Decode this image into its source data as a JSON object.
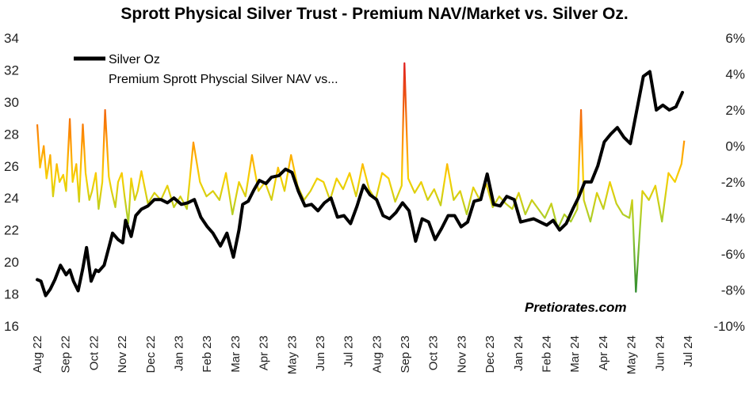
{
  "chart_data": {
    "type": "line",
    "title": "Sprott Physical Silver Trust - Premium NAV/Market vs. Silver Oz.",
    "watermark": "Pretiorates.com",
    "y_left": {
      "ylim": [
        16,
        34
      ],
      "ticks": [
        "16",
        "18",
        "20",
        "22",
        "24",
        "26",
        "28",
        "30",
        "32",
        "34"
      ]
    },
    "y_right": {
      "ylim": [
        -10,
        6
      ],
      "ticks": [
        "-10%",
        "-8%",
        "-6%",
        "-4%",
        "-2%",
        "0%",
        "2%",
        "4%",
        "6%"
      ]
    },
    "x_ticks": [
      "Aug 22",
      "Sep 22",
      "Oct 22",
      "Nov 22",
      "Dec 22",
      "Jan 23",
      "Feb 23",
      "Mar 23",
      "Apr 23",
      "May 23",
      "Jun 23",
      "Jul 23",
      "Aug 23",
      "Sep 23",
      "Oct 23",
      "Nov 23",
      "Dec 23",
      "Jan 24",
      "Feb 24",
      "Mar 24",
      "Apr 24",
      "May 24",
      "Jun 24",
      "Jul 24"
    ],
    "legend": {
      "placement": "top-left"
    },
    "grid": false,
    "series": [
      {
        "name": "Silver Oz",
        "axis": "left",
        "color": "#000000",
        "x": [
          "2022-08-01",
          "2022-08-05",
          "2022-08-10",
          "2022-08-15",
          "2022-08-20",
          "2022-08-26",
          "2022-09-01",
          "2022-09-05",
          "2022-09-09",
          "2022-09-14",
          "2022-09-19",
          "2022-09-23",
          "2022-09-28",
          "2022-10-03",
          "2022-10-06",
          "2022-10-12",
          "2022-10-17",
          "2022-10-21",
          "2022-10-27",
          "2022-11-01",
          "2022-11-04",
          "2022-11-10",
          "2022-11-15",
          "2022-11-21",
          "2022-11-28",
          "2022-12-05",
          "2022-12-12",
          "2022-12-19",
          "2022-12-26",
          "2023-01-03",
          "2023-01-10",
          "2023-01-17",
          "2023-01-24",
          "2023-01-31",
          "2023-02-06",
          "2023-02-14",
          "2023-02-21",
          "2023-02-28",
          "2023-03-06",
          "2023-03-10",
          "2023-03-16",
          "2023-03-22",
          "2023-03-28",
          "2023-04-04",
          "2023-04-10",
          "2023-04-18",
          "2023-04-25",
          "2023-05-02",
          "2023-05-09",
          "2023-05-16",
          "2023-05-23",
          "2023-05-30",
          "2023-06-06",
          "2023-06-13",
          "2023-06-20",
          "2023-06-27",
          "2023-07-04",
          "2023-07-11",
          "2023-07-18",
          "2023-07-25",
          "2023-08-01",
          "2023-08-08",
          "2023-08-15",
          "2023-08-22",
          "2023-08-29",
          "2023-09-05",
          "2023-09-12",
          "2023-09-19",
          "2023-09-26",
          "2023-10-03",
          "2023-10-10",
          "2023-10-17",
          "2023-10-24",
          "2023-10-31",
          "2023-11-07",
          "2023-11-14",
          "2023-11-21",
          "2023-11-28",
          "2023-12-05",
          "2023-12-12",
          "2023-12-19",
          "2023-12-27",
          "2024-01-03",
          "2024-01-10",
          "2024-01-17",
          "2024-01-24",
          "2024-01-31",
          "2024-02-07",
          "2024-02-14",
          "2024-02-21",
          "2024-02-28",
          "2024-03-05",
          "2024-03-12",
          "2024-03-19",
          "2024-03-26",
          "2024-04-02",
          "2024-04-09",
          "2024-04-16",
          "2024-04-23",
          "2024-04-30",
          "2024-05-07",
          "2024-05-14",
          "2024-05-21",
          "2024-05-28",
          "2024-06-04",
          "2024-06-11",
          "2024-06-18",
          "2024-06-25"
        ],
        "values": [
          18.9,
          18.8,
          17.9,
          18.3,
          18.9,
          19.8,
          19.2,
          19.5,
          18.8,
          18.2,
          19.6,
          20.9,
          18.8,
          19.5,
          19.4,
          19.8,
          20.9,
          21.8,
          21.4,
          21.2,
          22.6,
          21.6,
          22.9,
          23.3,
          23.5,
          23.9,
          23.9,
          23.7,
          24.0,
          23.6,
          23.7,
          23.9,
          22.8,
          22.2,
          21.8,
          21.0,
          21.8,
          20.3,
          22.0,
          23.6,
          23.8,
          24.5,
          25.1,
          24.9,
          25.3,
          25.4,
          25.8,
          25.6,
          24.4,
          23.5,
          23.6,
          23.2,
          23.7,
          24.0,
          22.8,
          22.9,
          22.4,
          23.5,
          24.8,
          24.2,
          23.9,
          22.9,
          22.7,
          23.1,
          23.7,
          23.2,
          21.3,
          22.7,
          22.5,
          21.4,
          22.1,
          22.9,
          22.9,
          22.2,
          22.5,
          23.8,
          23.9,
          25.5,
          23.6,
          23.5,
          24.1,
          23.9,
          22.5,
          22.6,
          22.7,
          22.5,
          22.3,
          22.6,
          22.0,
          22.4,
          23.3,
          24.0,
          25.0,
          25.0,
          26.0,
          27.5,
          28.0,
          28.4,
          27.8,
          27.4,
          29.5,
          31.6,
          31.9,
          29.5,
          29.8,
          29.5,
          29.7,
          30.6
        ]
      },
      {
        "name": "Premium Sprott Physcial Silver NAV vs...",
        "axis": "right",
        "color": "#f5a623",
        "gradient": [
          "#e02020",
          "#ff9900",
          "#f7d000",
          "#9acd32",
          "#2e8b2e"
        ],
        "x": [
          "2022-08-01",
          "2022-08-04",
          "2022-08-08",
          "2022-08-11",
          "2022-08-15",
          "2022-08-18",
          "2022-08-22",
          "2022-08-25",
          "2022-08-29",
          "2022-09-01",
          "2022-09-05",
          "2022-09-08",
          "2022-09-12",
          "2022-09-15",
          "2022-09-19",
          "2022-09-22",
          "2022-09-26",
          "2022-09-29",
          "2022-10-03",
          "2022-10-06",
          "2022-10-10",
          "2022-10-13",
          "2022-10-17",
          "2022-10-20",
          "2022-10-24",
          "2022-10-27",
          "2022-10-31",
          "2022-11-03",
          "2022-11-07",
          "2022-11-10",
          "2022-11-14",
          "2022-11-17",
          "2022-11-21",
          "2022-11-28",
          "2022-12-05",
          "2022-12-12",
          "2022-12-19",
          "2022-12-26",
          "2023-01-02",
          "2023-01-09",
          "2023-01-16",
          "2023-01-23",
          "2023-01-30",
          "2023-02-06",
          "2023-02-13",
          "2023-02-20",
          "2023-02-27",
          "2023-03-06",
          "2023-03-13",
          "2023-03-20",
          "2023-03-27",
          "2023-04-03",
          "2023-04-10",
          "2023-04-17",
          "2023-04-24",
          "2023-05-01",
          "2023-05-08",
          "2023-05-15",
          "2023-05-22",
          "2023-05-29",
          "2023-06-05",
          "2023-06-12",
          "2023-06-19",
          "2023-06-26",
          "2023-07-03",
          "2023-07-10",
          "2023-07-17",
          "2023-07-24",
          "2023-07-31",
          "2023-08-07",
          "2023-08-14",
          "2023-08-21",
          "2023-08-28",
          "2023-08-31",
          "2023-09-04",
          "2023-09-11",
          "2023-09-18",
          "2023-09-25",
          "2023-10-02",
          "2023-10-09",
          "2023-10-16",
          "2023-10-23",
          "2023-10-30",
          "2023-11-06",
          "2023-11-13",
          "2023-11-20",
          "2023-11-27",
          "2023-12-04",
          "2023-12-11",
          "2023-12-18",
          "2023-12-25",
          "2024-01-01",
          "2024-01-08",
          "2024-01-15",
          "2024-01-22",
          "2024-01-29",
          "2024-02-05",
          "2024-02-12",
          "2024-02-19",
          "2024-02-26",
          "2024-03-04",
          "2024-03-08",
          "2024-03-11",
          "2024-03-18",
          "2024-03-25",
          "2024-04-01",
          "2024-04-08",
          "2024-04-15",
          "2024-04-22",
          "2024-04-29",
          "2024-05-02",
          "2024-05-06",
          "2024-05-13",
          "2024-05-20",
          "2024-05-27",
          "2024-06-03",
          "2024-06-10",
          "2024-06-17",
          "2024-06-24",
          "2024-06-27"
        ],
        "values": [
          1.2,
          -1.2,
          0.0,
          -1.8,
          -0.5,
          -2.8,
          -1.0,
          -2.0,
          -1.6,
          -2.5,
          1.5,
          -2.0,
          -1.0,
          -3.1,
          1.2,
          -1.5,
          -3.0,
          -2.5,
          -1.5,
          -3.5,
          -2.0,
          2.0,
          -1.7,
          -2.5,
          -3.4,
          -2.0,
          -1.5,
          -2.8,
          -4.3,
          -1.8,
          -3.0,
          -2.5,
          -1.4,
          -3.2,
          -2.6,
          -3.0,
          -2.2,
          -3.4,
          -2.8,
          -3.5,
          0.2,
          -2.0,
          -2.8,
          -2.5,
          -3.0,
          -1.5,
          -3.8,
          -2.0,
          -2.8,
          -0.5,
          -2.5,
          -2.0,
          -3.0,
          -1.2,
          -2.5,
          -0.5,
          -2.2,
          -3.0,
          -2.5,
          -1.8,
          -2.0,
          -3.0,
          -1.8,
          -2.4,
          -1.5,
          -2.8,
          -1.0,
          -2.4,
          -3.0,
          -1.5,
          -1.8,
          -3.1,
          -2.2,
          4.6,
          -1.8,
          -2.6,
          -2.0,
          -3.0,
          -2.4,
          -3.3,
          -1.0,
          -3.0,
          -2.5,
          -3.8,
          -2.3,
          -3.0,
          -2.1,
          -3.4,
          -2.8,
          -3.2,
          -3.5,
          -2.6,
          -3.8,
          -3.0,
          -3.5,
          -4.0,
          -3.2,
          -4.6,
          -3.8,
          -4.2,
          -3.5,
          2.0,
          -3.0,
          -4.2,
          -2.6,
          -3.5,
          -2.0,
          -3.2,
          -3.8,
          -4.0,
          -3.0,
          -8.1,
          -2.5,
          -3.0,
          -2.2,
          -4.2,
          -1.5,
          -2.0,
          -1.0,
          0.3
        ]
      }
    ]
  }
}
